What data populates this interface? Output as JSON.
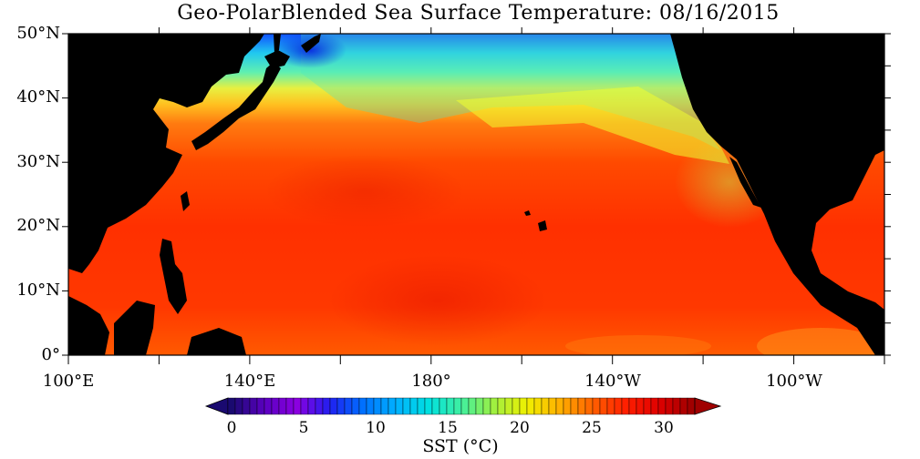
{
  "title": "Geo-PolarBlended Sea Surface Temperature: 08/16/2015",
  "map": {
    "lon_range": [
      100,
      280
    ],
    "lat_range": [
      0,
      50
    ],
    "latitude_labels": [
      {
        "lat": 50,
        "label": "50°N"
      },
      {
        "lat": 40,
        "label": "40°N"
      },
      {
        "lat": 30,
        "label": "30°N"
      },
      {
        "lat": 20,
        "label": "20°N"
      },
      {
        "lat": 10,
        "label": "10°N"
      },
      {
        "lat": 0,
        "label": "0°"
      }
    ],
    "longitude_labels": [
      {
        "lon": 100,
        "label": "100°E"
      },
      {
        "lon": 140,
        "label": "140°E"
      },
      {
        "lon": 180,
        "label": "180°"
      },
      {
        "lon": 220,
        "label": "140°W"
      },
      {
        "lon": 260,
        "label": "100°W"
      }
    ],
    "land_color": "#000000"
  },
  "colorbar": {
    "title": "SST (°C)",
    "min": -2,
    "max": 32,
    "tick_labels": [
      {
        "value": 0,
        "label": "0"
      },
      {
        "value": 5,
        "label": "5"
      },
      {
        "value": 10,
        "label": "10"
      },
      {
        "value": 15,
        "label": "15"
      },
      {
        "value": 20,
        "label": "20"
      },
      {
        "value": 25,
        "label": "25"
      },
      {
        "value": 30,
        "label": "30"
      }
    ],
    "colors": [
      "#1a0a70",
      "#5a00c0",
      "#8a00e0",
      "#2020f0",
      "#0070ff",
      "#00b0ff",
      "#00e0e0",
      "#40f0a0",
      "#a0f040",
      "#f0f000",
      "#ffb000",
      "#ff6000",
      "#ff2000",
      "#e00000",
      "#a00000"
    ]
  }
}
